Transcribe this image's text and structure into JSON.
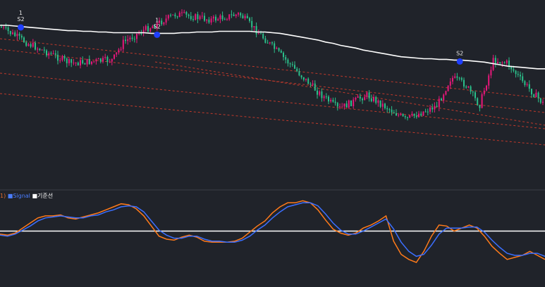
{
  "header": {
    "text": "1 S2 ... 거래"
  },
  "colors": {
    "background": "#20232a",
    "bull": "#e8177a",
    "bear": "#2bbf8a",
    "ma": "#ffffff",
    "channel": "#c0392b",
    "osc_main": "#ff7a1a",
    "osc_signal": "#3b6fff",
    "baseline": "#ffffff",
    "signal_marker": "#1f3fff"
  },
  "legend": {
    "prefix": "1)",
    "signal": "Signal",
    "baseline": "기준선"
  },
  "chart_data": [
    {
      "type": "candlestick",
      "series": [
        {
          "name": "",
          "kind": "moving-average",
          "values": [
            36,
            36,
            37,
            38,
            39,
            40,
            41,
            42,
            43,
            44,
            44,
            45,
            45,
            46,
            46,
            47,
            47,
            47,
            47,
            47,
            48,
            48,
            48,
            48,
            47,
            47,
            46,
            46,
            46,
            45,
            45,
            45,
            45,
            45,
            46,
            46,
            47,
            48,
            50,
            52,
            54,
            56,
            58,
            61,
            63,
            66,
            68,
            70,
            73,
            75,
            77,
            79,
            81,
            83,
            84,
            85,
            86,
            86,
            87,
            87,
            88,
            88,
            89,
            90,
            91,
            93,
            95,
            97,
            98,
            99,
            100,
            101,
            101
          ]
        }
      ],
      "signals": [
        {
          "label": "S2",
          "count": "1",
          "index": 2
        },
        {
          "label": "S2",
          "count": "1",
          "index": 20
        },
        {
          "label": "S2",
          "count": "",
          "index": 60
        }
      ]
    },
    {
      "type": "line",
      "series": [
        {
          "name": "",
          "values": [
            -3,
            -4,
            -2,
            3,
            8,
            13,
            15,
            15,
            16,
            13,
            12,
            14,
            16,
            18,
            21,
            24,
            27,
            26,
            22,
            15,
            5,
            -5,
            -8,
            -9,
            -6,
            -4,
            -6,
            -10,
            -11,
            -11,
            -11,
            -10,
            -7,
            -1,
            5,
            10,
            18,
            24,
            28,
            28,
            30,
            28,
            21,
            11,
            2,
            -2,
            -4,
            -2,
            3,
            6,
            10,
            15,
            -10,
            -23,
            -28,
            -31,
            -20,
            -5,
            6,
            5,
            0,
            3,
            6,
            3,
            -5,
            -15,
            -22,
            -28,
            -26,
            -24,
            -20,
            -24,
            -28
          ]
        },
        {
          "name": "Signal",
          "values": [
            -4,
            -5,
            -3,
            1,
            5,
            10,
            13,
            14,
            15,
            14,
            13,
            13,
            15,
            16,
            19,
            21,
            24,
            25,
            24,
            19,
            10,
            1,
            -4,
            -7,
            -7,
            -5,
            -5,
            -8,
            -10,
            -10,
            -11,
            -11,
            -9,
            -5,
            1,
            6,
            13,
            19,
            24,
            26,
            28,
            28,
            25,
            17,
            8,
            1,
            -3,
            -3,
            0,
            4,
            8,
            12,
            2,
            -11,
            -20,
            -25,
            -23,
            -14,
            -3,
            3,
            3,
            3,
            4,
            4,
            -1,
            -9,
            -16,
            -22,
            -24,
            -24,
            -22,
            -22,
            -25
          ]
        },
        {
          "name": "기준선",
          "values": [
            0,
            0
          ]
        }
      ],
      "ylim": [
        -40,
        40
      ]
    }
  ]
}
